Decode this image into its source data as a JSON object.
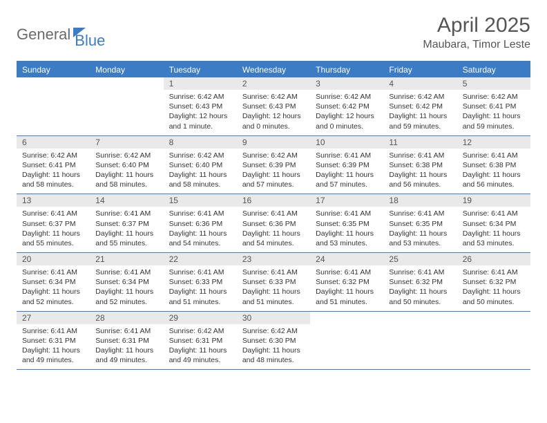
{
  "logo": {
    "part1": "General",
    "part2": "Blue"
  },
  "title": "April 2025",
  "location": "Maubara, Timor Leste",
  "day_names": [
    "Sunday",
    "Monday",
    "Tuesday",
    "Wednesday",
    "Thursday",
    "Friday",
    "Saturday"
  ],
  "colors": {
    "accent": "#3b7cc4",
    "header_text": "#ffffff",
    "daynum_bg": "#e9e9e9",
    "text": "#333333",
    "logo_gray": "#6a6a6a"
  },
  "weeks": [
    [
      {
        "day": "",
        "sunrise": "",
        "sunset": "",
        "daylight": ""
      },
      {
        "day": "",
        "sunrise": "",
        "sunset": "",
        "daylight": ""
      },
      {
        "day": "1",
        "sunrise": "Sunrise: 6:42 AM",
        "sunset": "Sunset: 6:43 PM",
        "daylight": "Daylight: 12 hours and 1 minute."
      },
      {
        "day": "2",
        "sunrise": "Sunrise: 6:42 AM",
        "sunset": "Sunset: 6:43 PM",
        "daylight": "Daylight: 12 hours and 0 minutes."
      },
      {
        "day": "3",
        "sunrise": "Sunrise: 6:42 AM",
        "sunset": "Sunset: 6:42 PM",
        "daylight": "Daylight: 12 hours and 0 minutes."
      },
      {
        "day": "4",
        "sunrise": "Sunrise: 6:42 AM",
        "sunset": "Sunset: 6:42 PM",
        "daylight": "Daylight: 11 hours and 59 minutes."
      },
      {
        "day": "5",
        "sunrise": "Sunrise: 6:42 AM",
        "sunset": "Sunset: 6:41 PM",
        "daylight": "Daylight: 11 hours and 59 minutes."
      }
    ],
    [
      {
        "day": "6",
        "sunrise": "Sunrise: 6:42 AM",
        "sunset": "Sunset: 6:41 PM",
        "daylight": "Daylight: 11 hours and 58 minutes."
      },
      {
        "day": "7",
        "sunrise": "Sunrise: 6:42 AM",
        "sunset": "Sunset: 6:40 PM",
        "daylight": "Daylight: 11 hours and 58 minutes."
      },
      {
        "day": "8",
        "sunrise": "Sunrise: 6:42 AM",
        "sunset": "Sunset: 6:40 PM",
        "daylight": "Daylight: 11 hours and 58 minutes."
      },
      {
        "day": "9",
        "sunrise": "Sunrise: 6:42 AM",
        "sunset": "Sunset: 6:39 PM",
        "daylight": "Daylight: 11 hours and 57 minutes."
      },
      {
        "day": "10",
        "sunrise": "Sunrise: 6:41 AM",
        "sunset": "Sunset: 6:39 PM",
        "daylight": "Daylight: 11 hours and 57 minutes."
      },
      {
        "day": "11",
        "sunrise": "Sunrise: 6:41 AM",
        "sunset": "Sunset: 6:38 PM",
        "daylight": "Daylight: 11 hours and 56 minutes."
      },
      {
        "day": "12",
        "sunrise": "Sunrise: 6:41 AM",
        "sunset": "Sunset: 6:38 PM",
        "daylight": "Daylight: 11 hours and 56 minutes."
      }
    ],
    [
      {
        "day": "13",
        "sunrise": "Sunrise: 6:41 AM",
        "sunset": "Sunset: 6:37 PM",
        "daylight": "Daylight: 11 hours and 55 minutes."
      },
      {
        "day": "14",
        "sunrise": "Sunrise: 6:41 AM",
        "sunset": "Sunset: 6:37 PM",
        "daylight": "Daylight: 11 hours and 55 minutes."
      },
      {
        "day": "15",
        "sunrise": "Sunrise: 6:41 AM",
        "sunset": "Sunset: 6:36 PM",
        "daylight": "Daylight: 11 hours and 54 minutes."
      },
      {
        "day": "16",
        "sunrise": "Sunrise: 6:41 AM",
        "sunset": "Sunset: 6:36 PM",
        "daylight": "Daylight: 11 hours and 54 minutes."
      },
      {
        "day": "17",
        "sunrise": "Sunrise: 6:41 AM",
        "sunset": "Sunset: 6:35 PM",
        "daylight": "Daylight: 11 hours and 53 minutes."
      },
      {
        "day": "18",
        "sunrise": "Sunrise: 6:41 AM",
        "sunset": "Sunset: 6:35 PM",
        "daylight": "Daylight: 11 hours and 53 minutes."
      },
      {
        "day": "19",
        "sunrise": "Sunrise: 6:41 AM",
        "sunset": "Sunset: 6:34 PM",
        "daylight": "Daylight: 11 hours and 53 minutes."
      }
    ],
    [
      {
        "day": "20",
        "sunrise": "Sunrise: 6:41 AM",
        "sunset": "Sunset: 6:34 PM",
        "daylight": "Daylight: 11 hours and 52 minutes."
      },
      {
        "day": "21",
        "sunrise": "Sunrise: 6:41 AM",
        "sunset": "Sunset: 6:34 PM",
        "daylight": "Daylight: 11 hours and 52 minutes."
      },
      {
        "day": "22",
        "sunrise": "Sunrise: 6:41 AM",
        "sunset": "Sunset: 6:33 PM",
        "daylight": "Daylight: 11 hours and 51 minutes."
      },
      {
        "day": "23",
        "sunrise": "Sunrise: 6:41 AM",
        "sunset": "Sunset: 6:33 PM",
        "daylight": "Daylight: 11 hours and 51 minutes."
      },
      {
        "day": "24",
        "sunrise": "Sunrise: 6:41 AM",
        "sunset": "Sunset: 6:32 PM",
        "daylight": "Daylight: 11 hours and 51 minutes."
      },
      {
        "day": "25",
        "sunrise": "Sunrise: 6:41 AM",
        "sunset": "Sunset: 6:32 PM",
        "daylight": "Daylight: 11 hours and 50 minutes."
      },
      {
        "day": "26",
        "sunrise": "Sunrise: 6:41 AM",
        "sunset": "Sunset: 6:32 PM",
        "daylight": "Daylight: 11 hours and 50 minutes."
      }
    ],
    [
      {
        "day": "27",
        "sunrise": "Sunrise: 6:41 AM",
        "sunset": "Sunset: 6:31 PM",
        "daylight": "Daylight: 11 hours and 49 minutes."
      },
      {
        "day": "28",
        "sunrise": "Sunrise: 6:41 AM",
        "sunset": "Sunset: 6:31 PM",
        "daylight": "Daylight: 11 hours and 49 minutes."
      },
      {
        "day": "29",
        "sunrise": "Sunrise: 6:42 AM",
        "sunset": "Sunset: 6:31 PM",
        "daylight": "Daylight: 11 hours and 49 minutes."
      },
      {
        "day": "30",
        "sunrise": "Sunrise: 6:42 AM",
        "sunset": "Sunset: 6:30 PM",
        "daylight": "Daylight: 11 hours and 48 minutes."
      },
      {
        "day": "",
        "sunrise": "",
        "sunset": "",
        "daylight": ""
      },
      {
        "day": "",
        "sunrise": "",
        "sunset": "",
        "daylight": ""
      },
      {
        "day": "",
        "sunrise": "",
        "sunset": "",
        "daylight": ""
      }
    ]
  ]
}
